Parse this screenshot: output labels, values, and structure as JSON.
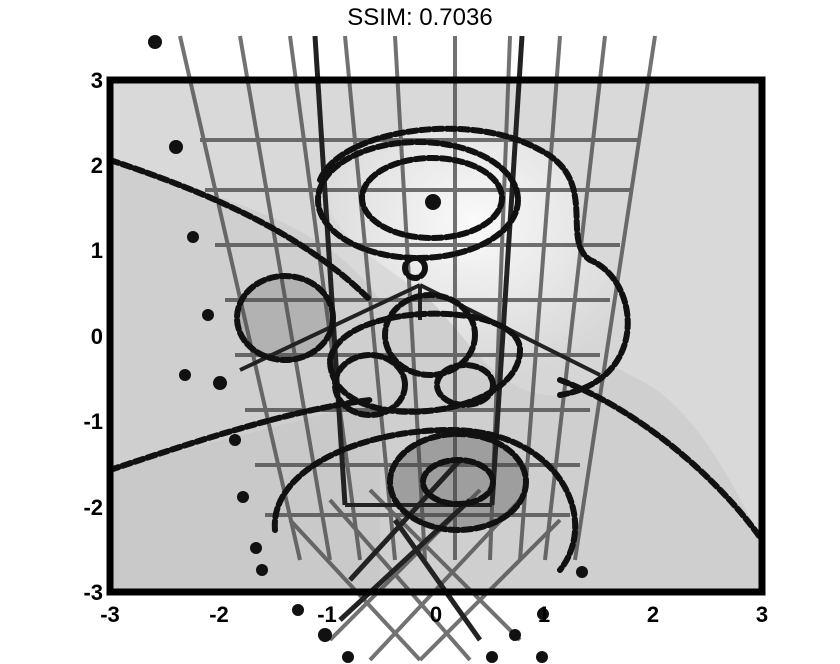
{
  "figure": {
    "title": "SSIM: 0.7036",
    "xtick_labels": [
      "-3",
      "-2",
      "-1",
      "0",
      "1",
      "2",
      "3"
    ],
    "ytick_labels": [
      "3",
      "2",
      "1",
      "0",
      "-1",
      "-2",
      "-3"
    ],
    "colors": {
      "background": "#ffffff",
      "plot_fill": "#cfcfcf",
      "light_region": "#e6e6e6",
      "dark_region": "#9a9a9a",
      "ink": "#111111"
    }
  }
}
